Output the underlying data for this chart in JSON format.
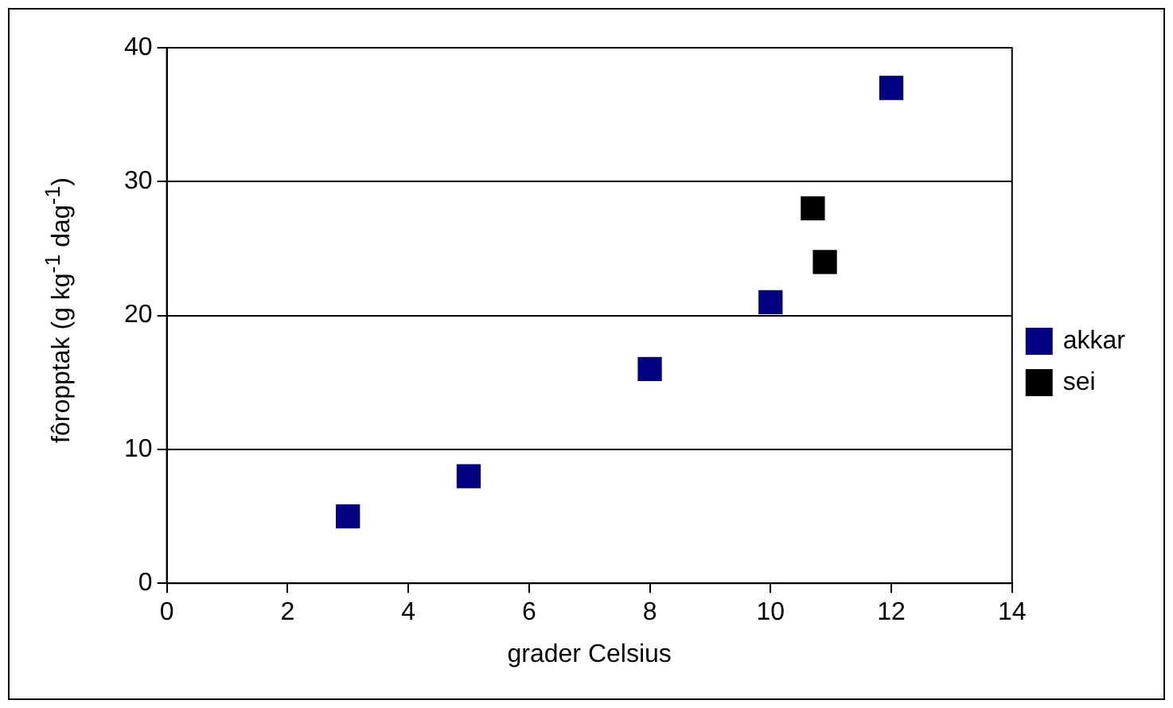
{
  "chart_data": {
    "type": "scatter",
    "xlabel": "grader Celsius",
    "ylabel": "fôropptak (g kg$^{-1}$ dag$^{-1}$)",
    "series": [
      {
        "name": "akkar",
        "color": "#000080",
        "x": [
          3,
          5,
          8,
          10,
          12
        ],
        "values": [
          5,
          8,
          16,
          21,
          37
        ]
      },
      {
        "name": "sei",
        "color": "#000000",
        "x": [
          10.7,
          10.9
        ],
        "values": [
          28,
          24
        ]
      }
    ],
    "xlim": [
      0,
      14
    ],
    "xticks": [
      0,
      2,
      4,
      6,
      8,
      10,
      12,
      14
    ],
    "ylim": [
      0,
      40
    ],
    "yticks": [
      0,
      10,
      20,
      30,
      40
    ],
    "grid": "y",
    "legend": "right",
    "marker": "square"
  }
}
